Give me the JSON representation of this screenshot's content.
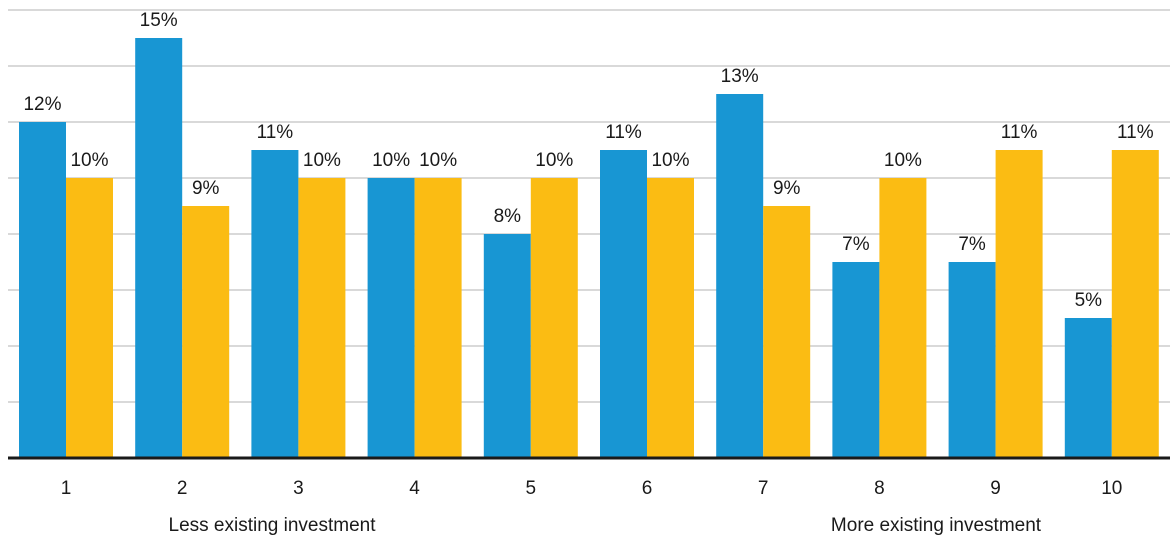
{
  "chart_data": {
    "type": "bar",
    "categories": [
      "1",
      "2",
      "3",
      "4",
      "5",
      "6",
      "7",
      "8",
      "9",
      "10"
    ],
    "series": [
      {
        "color": "#1896d3",
        "values": [
          12,
          15,
          11,
          10,
          8,
          11,
          13,
          7,
          7,
          5
        ],
        "labels": [
          "12%",
          "15%",
          "11%",
          "10%",
          "8%",
          "11%",
          "13%",
          "7%",
          "7%",
          "5%"
        ]
      },
      {
        "color": "#fbbc13",
        "values": [
          10,
          9,
          10,
          10,
          10,
          10,
          9,
          10,
          11,
          11
        ],
        "labels": [
          "10%",
          "9%",
          "10%",
          "10%",
          "10%",
          "10%",
          "9%",
          "10%",
          "11%",
          "11%"
        ]
      }
    ],
    "ylim": [
      0,
      16
    ],
    "grid": true,
    "legend": "none",
    "axis_notes": {
      "left": "Less existing investment",
      "right": "More existing investment"
    }
  }
}
